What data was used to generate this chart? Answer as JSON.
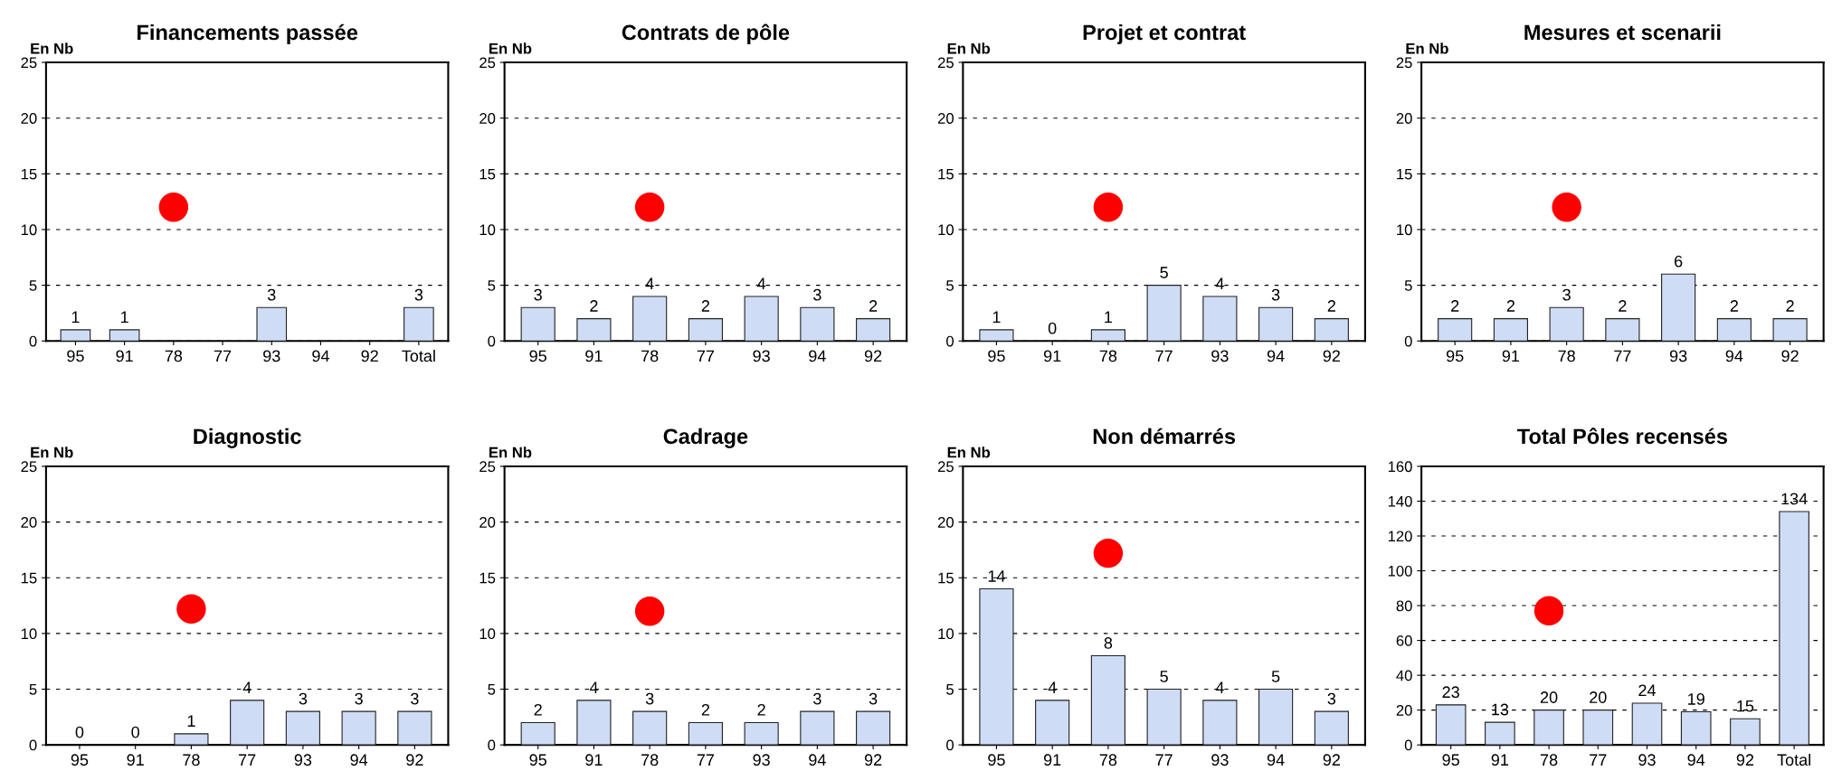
{
  "chart_data": [
    {
      "type": "bar",
      "title": "Financements passée",
      "ylabel": "En Nb",
      "categories": [
        "95",
        "91",
        "78",
        "77",
        "93",
        "94",
        "92",
        "Total"
      ],
      "ylim": [
        0,
        25
      ],
      "yticks": [
        0,
        5,
        10,
        15,
        20,
        25
      ],
      "grid": "y",
      "series": [
        {
          "color": "#cfdcf5",
          "values": [
            1,
            1,
            null,
            null,
            3,
            null,
            null,
            3
          ],
          "value_labels": [
            "1",
            "1",
            null,
            null,
            "3",
            null,
            null,
            "3"
          ]
        },
        {
          "type": "scatter",
          "color": "#ff0000",
          "x": [
            "78"
          ],
          "values": [
            12
          ]
        }
      ]
    },
    {
      "type": "bar",
      "title": "Contrats de pôle",
      "ylabel": "En Nb",
      "categories": [
        "95",
        "91",
        "78",
        "77",
        "93",
        "94",
        "92"
      ],
      "ylim": [
        0,
        25
      ],
      "yticks": [
        0,
        5,
        10,
        15,
        20,
        25
      ],
      "grid": "y",
      "series": [
        {
          "color": "#cfdcf5",
          "values": [
            3,
            2,
            4,
            2,
            4,
            3,
            2
          ],
          "value_labels": [
            "3",
            "2",
            "4",
            "2",
            "4",
            "3",
            "2"
          ]
        },
        {
          "type": "scatter",
          "color": "#ff0000",
          "x": [
            "78"
          ],
          "values": [
            12
          ]
        }
      ]
    },
    {
      "type": "bar",
      "title": "Projet et contrat",
      "ylabel": "En Nb",
      "categories": [
        "95",
        "91",
        "78",
        "77",
        "93",
        "94",
        "92"
      ],
      "ylim": [
        0,
        25
      ],
      "yticks": [
        0,
        5,
        10,
        15,
        20,
        25
      ],
      "grid": "y",
      "series": [
        {
          "color": "#cfdcf5",
          "values": [
            1,
            0,
            1,
            5,
            4,
            3,
            2
          ],
          "value_labels": [
            "1",
            "0",
            "1",
            "5",
            "4",
            "3",
            "2"
          ]
        },
        {
          "type": "scatter",
          "color": "#ff0000",
          "x": [
            "78"
          ],
          "values": [
            12
          ]
        }
      ]
    },
    {
      "type": "bar",
      "title": "Mesures et scenarii",
      "ylabel": "En Nb",
      "categories": [
        "95",
        "91",
        "78",
        "77",
        "93",
        "94",
        "92"
      ],
      "ylim": [
        0,
        25
      ],
      "yticks": [
        0,
        5,
        10,
        15,
        20,
        25
      ],
      "grid": "y",
      "series": [
        {
          "color": "#cfdcf5",
          "values": [
            2,
            2,
            3,
            2,
            6,
            2,
            2
          ],
          "value_labels": [
            "2",
            "2",
            "3",
            "2",
            "6",
            "2",
            "2"
          ]
        },
        {
          "type": "scatter",
          "color": "#ff0000",
          "x": [
            "78"
          ],
          "values": [
            12
          ]
        }
      ]
    },
    {
      "type": "bar",
      "title": "Diagnostic",
      "ylabel": "En Nb",
      "categories": [
        "95",
        "91",
        "78",
        "77",
        "93",
        "94",
        "92"
      ],
      "ylim": [
        0,
        25
      ],
      "yticks": [
        0,
        5,
        10,
        15,
        20,
        25
      ],
      "grid": "y",
      "series": [
        {
          "color": "#cfdcf5",
          "values": [
            0,
            0,
            1,
            4,
            3,
            3,
            3
          ],
          "value_labels": [
            "0",
            "0",
            "1",
            "4",
            "3",
            "3",
            "3"
          ]
        },
        {
          "type": "scatter",
          "color": "#ff0000",
          "x": [
            "78"
          ],
          "values": [
            12.2
          ]
        }
      ]
    },
    {
      "type": "bar",
      "title": "Cadrage",
      "ylabel": "En Nb",
      "categories": [
        "95",
        "91",
        "78",
        "77",
        "93",
        "94",
        "92"
      ],
      "ylim": [
        0,
        25
      ],
      "yticks": [
        0,
        5,
        10,
        15,
        20,
        25
      ],
      "grid": "y",
      "series": [
        {
          "color": "#cfdcf5",
          "values": [
            2,
            4,
            3,
            2,
            2,
            3,
            3
          ],
          "value_labels": [
            "2",
            "4",
            "3",
            "2",
            "2",
            "3",
            "3"
          ]
        },
        {
          "type": "scatter",
          "color": "#ff0000",
          "x": [
            "78"
          ],
          "values": [
            12
          ]
        }
      ]
    },
    {
      "type": "bar",
      "title": "Non démarrés",
      "ylabel": "En Nb",
      "categories": [
        "95",
        "91",
        "78",
        "77",
        "93",
        "94",
        "92"
      ],
      "ylim": [
        0,
        25
      ],
      "yticks": [
        0,
        5,
        10,
        15,
        20,
        25
      ],
      "grid": "y",
      "series": [
        {
          "color": "#cfdcf5",
          "values": [
            14,
            4,
            8,
            5,
            4,
            5,
            3
          ],
          "value_labels": [
            "14",
            "4",
            "8",
            "5",
            "4",
            "5",
            "3"
          ]
        },
        {
          "type": "scatter",
          "color": "#ff0000",
          "x": [
            "78"
          ],
          "values": [
            17.2
          ]
        }
      ]
    },
    {
      "type": "bar",
      "title": "Total Pôles recensés",
      "categories": [
        "95",
        "91",
        "78",
        "77",
        "93",
        "94",
        "92",
        "Total"
      ],
      "ylim": [
        0,
        160
      ],
      "yticks": [
        0,
        20,
        40,
        60,
        80,
        100,
        120,
        140,
        160
      ],
      "grid": "y",
      "series": [
        {
          "color": "#cfdcf5",
          "values": [
            23,
            13,
            20,
            20,
            24,
            19,
            15,
            134
          ],
          "value_labels": [
            "23",
            "13",
            "20",
            "20",
            "24",
            "19",
            "15",
            "134"
          ]
        },
        {
          "type": "scatter",
          "color": "#ff0000",
          "x": [
            "78"
          ],
          "values": [
            77
          ]
        }
      ]
    }
  ]
}
